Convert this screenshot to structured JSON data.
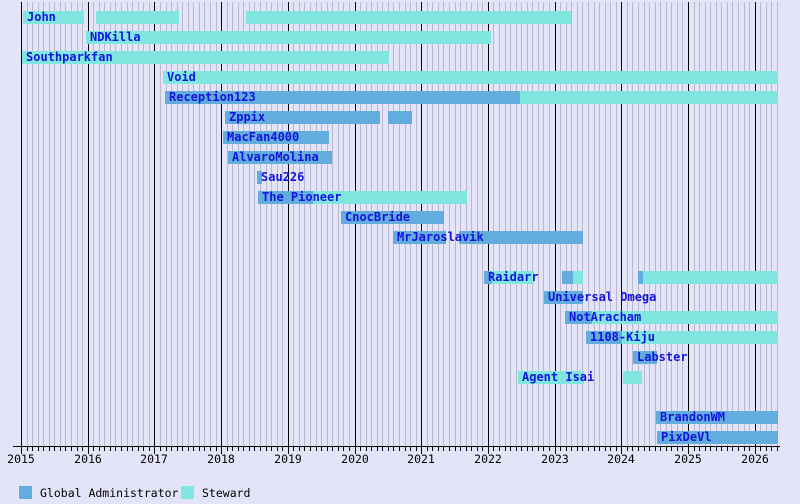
{
  "colors": {
    "background": "#E4E4F8",
    "grid_month": "#B9B9CB",
    "grid_year": "#000000",
    "global_administrator": "#62ACDE",
    "steward": "#80E6E0",
    "bar_label_text": "#1414DD",
    "axis_text": "#000000"
  },
  "chart_data": {
    "type": "gantt",
    "title": "",
    "xlabel": "",
    "ylabel": "",
    "grid": "monthly-minor-yearly-major",
    "x_axis": {
      "tick_labels": [
        "2015",
        "2016",
        "2017",
        "2018",
        "2019",
        "2020",
        "2021",
        "2022",
        "2023",
        "2024",
        "2025",
        "2026"
      ],
      "range_start": 2014.9,
      "range_end": 2026.35
    },
    "legend": {
      "position": "bottom-left",
      "items": [
        {
          "label": "Global Administrator",
          "role": "admin",
          "color": "#62ACDE"
        },
        {
          "label": "Steward",
          "role": "steward",
          "color": "#80E6E0"
        }
      ]
    },
    "rows": [
      {
        "label": "John",
        "segments": [
          {
            "role": "steward",
            "start": 2015.03,
            "end": 2015.94
          },
          {
            "role": "steward",
            "start": 2016.12,
            "end": 2017.37
          },
          {
            "role": "steward",
            "start": 2018.37,
            "end": 2023.25
          }
        ]
      },
      {
        "label": "NDKilla",
        "segments": [
          {
            "role": "steward",
            "start": 2015.97,
            "end": 2022.05
          }
        ]
      },
      {
        "label": "Southparkfan",
        "segments": [
          {
            "role": "steward",
            "start": 2015.01,
            "end": 2020.52
          }
        ]
      },
      {
        "label": "Void",
        "segments": [
          {
            "role": "steward",
            "start": 2017.13,
            "end": 2026.35
          }
        ]
      },
      {
        "label": "Reception123",
        "segments": [
          {
            "role": "admin",
            "start": 2017.16,
            "end": 2022.48
          },
          {
            "role": "steward",
            "start": 2022.48,
            "end": 2026.35
          }
        ]
      },
      {
        "label": "Zppix",
        "segments": [
          {
            "role": "admin",
            "start": 2018.06,
            "end": 2020.38
          },
          {
            "role": "admin",
            "start": 2020.5,
            "end": 2020.86
          }
        ]
      },
      {
        "label": "MacFan4000",
        "segments": [
          {
            "role": "admin",
            "start": 2018.03,
            "end": 2019.62
          }
        ]
      },
      {
        "label": "AlvaroMolina",
        "segments": [
          {
            "role": "admin",
            "start": 2018.1,
            "end": 2019.66
          }
        ]
      },
      {
        "label": "Sau226",
        "segments": [
          {
            "role": "admin",
            "start": 2018.54,
            "end": 2018.61
          }
        ]
      },
      {
        "label": "The Pioneer",
        "segments": [
          {
            "role": "admin",
            "start": 2018.55,
            "end": 2019.38
          },
          {
            "role": "steward",
            "start": 2019.38,
            "end": 2021.69
          }
        ]
      },
      {
        "label": "CnocBride",
        "segments": [
          {
            "role": "admin",
            "start": 2019.8,
            "end": 2021.34
          }
        ]
      },
      {
        "label": "MrJaroslavik",
        "segments": [
          {
            "role": "admin",
            "start": 2020.58,
            "end": 2021.37
          },
          {
            "role": "admin",
            "start": 2021.57,
            "end": 2023.43
          }
        ]
      },
      {
        "label": "",
        "segments": []
      },
      {
        "label": "Raidarr",
        "segments": [
          {
            "role": "admin",
            "start": 2021.94,
            "end": 2022.06
          },
          {
            "role": "steward",
            "start": 2022.06,
            "end": 2022.69
          },
          {
            "role": "admin",
            "start": 2023.11,
            "end": 2023.28
          },
          {
            "role": "steward",
            "start": 2023.28,
            "end": 2023.43
          },
          {
            "role": "admin",
            "start": 2024.25,
            "end": 2024.33
          },
          {
            "role": "steward",
            "start": 2024.33,
            "end": 2026.35
          }
        ]
      },
      {
        "label": "Universal Omega",
        "segments": [
          {
            "role": "admin",
            "start": 2022.84,
            "end": 2023.43
          }
        ]
      },
      {
        "label": "NotAracham",
        "segments": [
          {
            "role": "admin",
            "start": 2023.16,
            "end": 2023.56
          },
          {
            "role": "steward",
            "start": 2023.56,
            "end": 2026.35
          }
        ]
      },
      {
        "label": "1108-Kiju",
        "segments": [
          {
            "role": "admin",
            "start": 2023.47,
            "end": 2024.01
          },
          {
            "role": "steward",
            "start": 2024.01,
            "end": 2026.35
          }
        ]
      },
      {
        "label": "Labster",
        "segments": [
          {
            "role": "admin",
            "start": 2024.18,
            "end": 2024.54
          }
        ]
      },
      {
        "label": "Agent Isai",
        "segments": [
          {
            "role": "steward",
            "start": 2022.45,
            "end": 2023.44
          },
          {
            "role": "steward",
            "start": 2024.03,
            "end": 2024.31
          }
        ]
      },
      {
        "label": "",
        "segments": []
      },
      {
        "label": "BrandonWM",
        "segments": [
          {
            "role": "admin",
            "start": 2024.52,
            "end": 2026.35
          }
        ]
      },
      {
        "label": "PixDeVl",
        "segments": [
          {
            "role": "admin",
            "start": 2024.54,
            "end": 2026.35
          }
        ]
      }
    ]
  }
}
